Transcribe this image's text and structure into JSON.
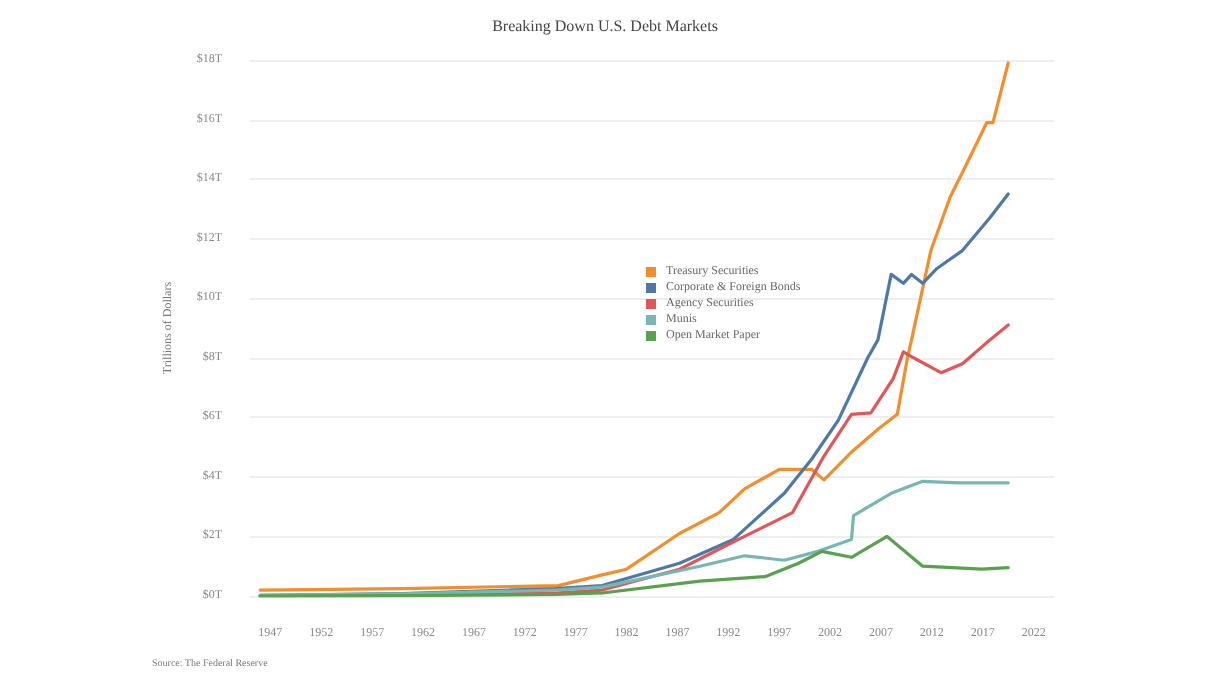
{
  "chart_data": {
    "type": "line",
    "title": "Breaking Down U.S. Debt Markets",
    "ylabel": "Trillions of Dollars",
    "xlim": [
      1945,
      2024
    ],
    "xticks": [
      1947,
      1952,
      1957,
      1962,
      1967,
      1972,
      1977,
      1982,
      1987,
      1992,
      1997,
      2002,
      2007,
      2012,
      2017,
      2022
    ],
    "ylim": [
      0,
      18
    ],
    "yticks": [
      {
        "value": 0,
        "label": "$0T"
      },
      {
        "value": 2,
        "label": "$2T"
      },
      {
        "value": 4,
        "label": "$4T"
      },
      {
        "value": 6,
        "label": "$6T"
      },
      {
        "value": 8,
        "label": "$8T"
      },
      {
        "value": 10,
        "label": "$10T"
      },
      {
        "value": 12,
        "label": "$12T"
      },
      {
        "value": 14,
        "label": "$14T"
      },
      {
        "value": 16,
        "label": "$16T"
      },
      {
        "value": 18,
        "label": "$18T"
      }
    ],
    "grid": "y",
    "legend": "center",
    "marker": "none",
    "line_style": "solid",
    "annotations": [
      "Source: The Federal Reserve"
    ],
    "series": [
      {
        "name": "Treasury Securities",
        "color": "#f28e2b",
        "x": [
          1946,
          1960,
          1975.3,
          1979.5,
          1982,
          1987.2,
          1991.1,
          1993.6,
          1997,
          2000.2,
          2001.4,
          2004,
          2006.7,
          2008.6,
          2009.6,
          2010,
          2011.9,
          2013.8,
          2015.4,
          2017.4,
          2018,
          2019.5
        ],
        "values": [
          0.2,
          0.25,
          0.35,
          0.7,
          0.9,
          2.1,
          2.8,
          3.6,
          4.25,
          4.25,
          3.9,
          4.8,
          5.6,
          6.1,
          8.0,
          8.6,
          11.6,
          13.4,
          14.5,
          15.9,
          15.9,
          17.9
        ]
      },
      {
        "name": "Corporate & Foreign Bonds",
        "color": "#4e79a7",
        "x": [
          1946,
          1960,
          1975,
          1979.6,
          1987.2,
          1992.5,
          1997.5,
          2000.2,
          2002.8,
          2005.7,
          2006.7,
          2008,
          2009.2,
          2010,
          2011.1,
          2012.5,
          2015,
          2017.7,
          2019.5
        ],
        "values": [
          0.02,
          0.08,
          0.25,
          0.35,
          1.1,
          1.9,
          3.45,
          4.6,
          5.9,
          8.0,
          8.6,
          10.8,
          10.5,
          10.8,
          10.5,
          11.0,
          11.6,
          12.7,
          13.5
        ]
      },
      {
        "name": "Agency Securities",
        "color": "#e15759",
        "x": [
          1946,
          1960,
          1975,
          1979.6,
          1987.2,
          1993,
          1998.3,
          2001.4,
          2004.1,
          2006,
          2008.2,
          2009.2,
          2010.2,
          2012.9,
          2015,
          2017.7,
          2019.5
        ],
        "values": [
          0.0,
          0.02,
          0.1,
          0.2,
          0.9,
          1.9,
          2.8,
          4.7,
          6.1,
          6.15,
          7.3,
          8.2,
          8.0,
          7.5,
          7.8,
          8.6,
          9.1
        ]
      },
      {
        "name": "Munis",
        "color": "#76b7b2",
        "x": [
          1946,
          1960,
          1975,
          1979.6,
          1989.2,
          1993.6,
          1997.5,
          2000.8,
          2004.1,
          2004.3,
          2008,
          2011.1,
          2014.6,
          2019.5
        ],
        "values": [
          0.02,
          0.07,
          0.2,
          0.3,
          1.0,
          1.35,
          1.2,
          1.5,
          1.9,
          2.7,
          3.45,
          3.85,
          3.8,
          3.8
        ]
      },
      {
        "name": "Open Market Paper",
        "color": "#59a14f",
        "x": [
          1946,
          1960,
          1975,
          1979.6,
          1989.2,
          1995.6,
          1998.9,
          2001.2,
          2004.1,
          2007.6,
          2011.1,
          2016.9,
          2019.5
        ],
        "values": [
          0.0,
          0.01,
          0.05,
          0.1,
          0.5,
          0.65,
          1.1,
          1.5,
          1.3,
          2.0,
          1.0,
          0.9,
          0.95
        ]
      }
    ]
  }
}
